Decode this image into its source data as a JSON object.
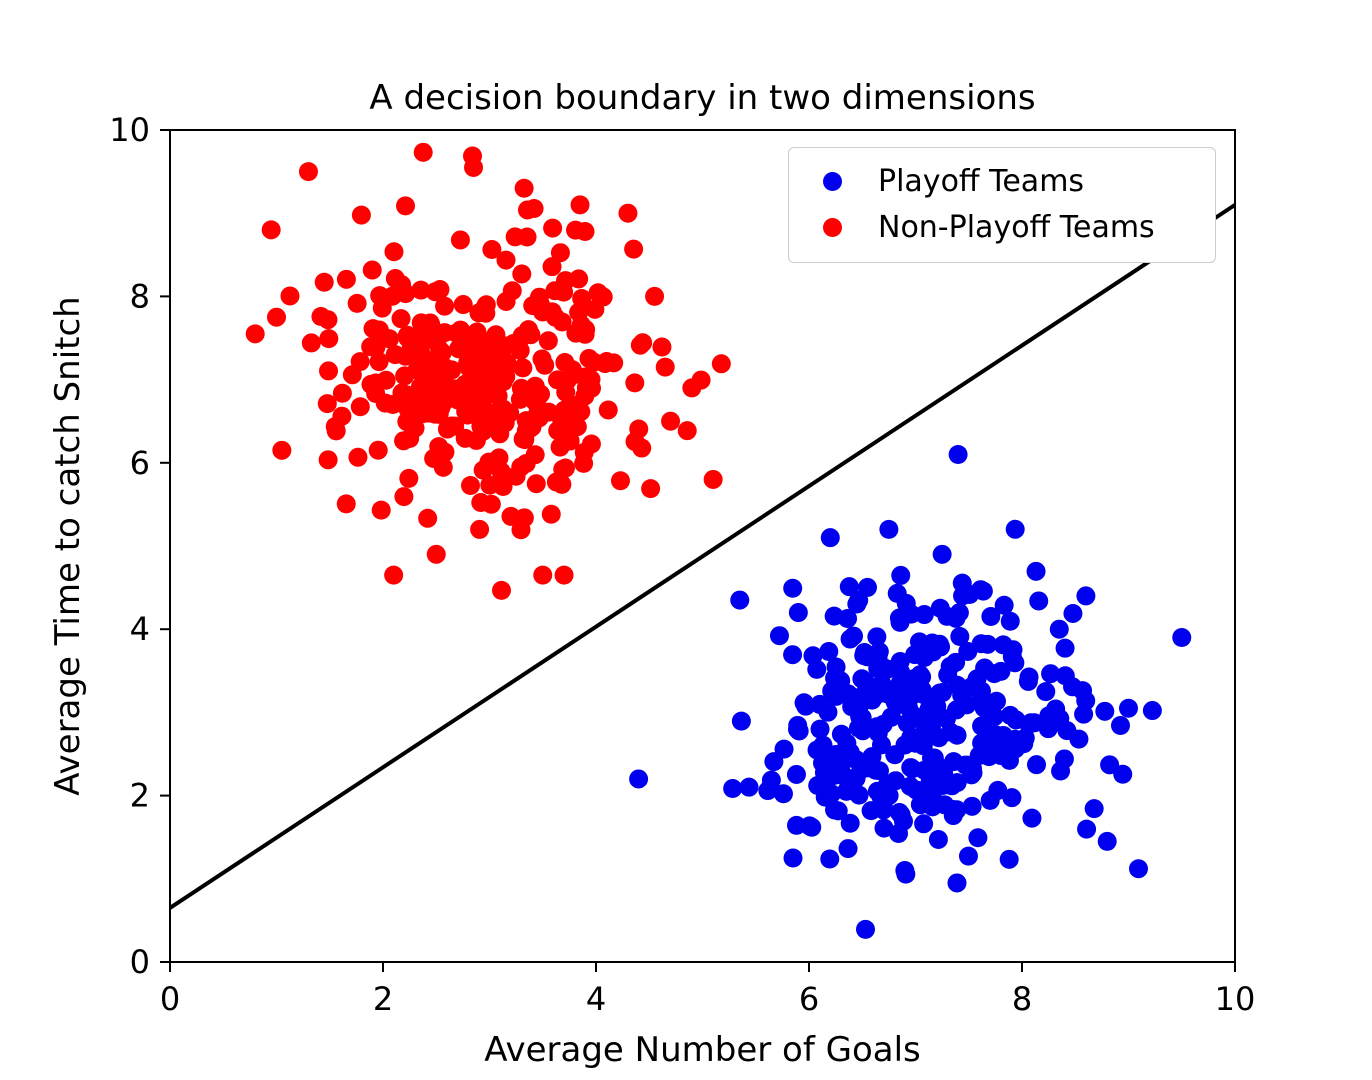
{
  "chart_data": {
    "type": "scatter",
    "title": "A decision boundary in two dimensions",
    "xlabel": "Average Number of Goals",
    "ylabel": "Average Time to catch Snitch",
    "xlim": [
      0,
      10
    ],
    "ylim": [
      0,
      10
    ],
    "xticks": [
      0,
      2,
      4,
      6,
      8,
      10
    ],
    "yticks": [
      0,
      2,
      4,
      6,
      8,
      10
    ],
    "grid": false,
    "legend_position": "upper right",
    "marker_radius_px": 9.5,
    "series": [
      {
        "name": "Playoff Teams",
        "color": "#0000ee",
        "cluster": {
          "center": [
            7.05,
            2.95
          ],
          "std": [
            0.78,
            0.78
          ],
          "n": 310,
          "seed": 42
        },
        "notable_points": [
          [
            7.4,
            6.1
          ],
          [
            9.5,
            3.9
          ],
          [
            4.4,
            2.2
          ],
          [
            6.2,
            5.1
          ],
          [
            8.6,
            4.4
          ],
          [
            5.35,
            4.35
          ],
          [
            6.9,
            1.1
          ],
          [
            8.8,
            1.45
          ],
          [
            5.85,
            1.25
          ],
          [
            9.0,
            3.05
          ],
          [
            8.35,
            4.0
          ],
          [
            7.25,
            4.9
          ],
          [
            6.75,
            5.2
          ],
          [
            5.9,
            4.2
          ]
        ]
      },
      {
        "name": "Non-Playoff Teams",
        "color": "#ff0000",
        "cluster": {
          "center": [
            3.0,
            7.05
          ],
          "std": [
            0.72,
            0.82
          ],
          "n": 310,
          "seed": 7
        },
        "notable_points": [
          [
            1.3,
            9.5
          ],
          [
            2.85,
            9.55
          ],
          [
            0.95,
            8.8
          ],
          [
            5.1,
            5.8
          ],
          [
            2.1,
            4.65
          ],
          [
            3.5,
            4.65
          ],
          [
            3.7,
            4.65
          ],
          [
            2.5,
            4.9
          ],
          [
            0.8,
            7.55
          ],
          [
            1.0,
            7.75
          ],
          [
            4.3,
            9.0
          ],
          [
            3.85,
            9.1
          ],
          [
            4.55,
            8.0
          ],
          [
            4.65,
            7.15
          ],
          [
            1.05,
            6.15
          ],
          [
            4.7,
            6.5
          ],
          [
            4.9,
            6.9
          ]
        ]
      }
    ],
    "boundary_line": {
      "color": "#000000",
      "points": [
        [
          0,
          0.65
        ],
        [
          10,
          9.1
        ]
      ],
      "width": 4
    }
  }
}
